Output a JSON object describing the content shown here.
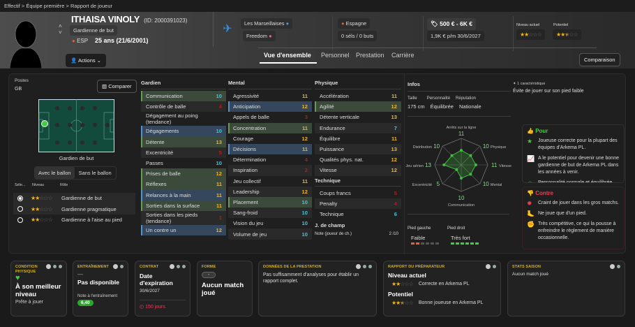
{
  "breadcrumb": [
    "Effectif",
    "Équipe première",
    "Rapport de joueur"
  ],
  "player": {
    "name": "ITHAISA VINOLY",
    "id": "(ID: 2000391023)",
    "position": "Gardienne de but",
    "nation_code": "ESP",
    "age": "25 ans (21/6/2001)",
    "actions": "Actions"
  },
  "club": {
    "name": "Les Marseillaises",
    "sponsor": "Freedom",
    "nationality": "Espagne",
    "caps": "0 séls / 0 buts",
    "value": "500 € - 6K €",
    "wage": "1,9K € p/m",
    "contract_end": "30/6/2027"
  },
  "ratings": {
    "current_label": "Niveau actuel",
    "current_stars": 2,
    "potential_label": "Potentiel",
    "potential_stars": 2.5
  },
  "tabs": [
    "Vue d'ensemble",
    "Personnel",
    "Prestation",
    "Carrière"
  ],
  "compare_top": "Comparaison",
  "positions": {
    "title": "Postes",
    "value": "GB",
    "compare": "Comparer",
    "pitch_label": "Gardien de but",
    "toggle": [
      "Avec le ballon",
      "Sans le ballon"
    ],
    "headers": [
      "Séle...",
      "Niveau",
      "Rôle"
    ],
    "roles": [
      {
        "name": "Gardienne de but",
        "stars": 2,
        "selected": true
      },
      {
        "name": "Gardienne pragmatique",
        "stars": 2,
        "selected": false
      },
      {
        "name": "Gardienne à l'aise au pied",
        "stars": 2,
        "selected": false
      }
    ]
  },
  "attributes": {
    "gardien": {
      "title": "Gardien",
      "items": [
        [
          "Communication",
          10,
          "g"
        ],
        [
          "Contrôle de balle",
          4,
          ""
        ],
        [
          "Dégagement au poing (tendance)",
          "",
          ""
        ],
        [
          "Dégagements",
          10,
          "b"
        ],
        [
          "Détente",
          13,
          "g"
        ],
        [
          "Excentricité",
          5,
          ""
        ],
        [
          "Passes",
          10,
          ""
        ],
        [
          "Prises de balle",
          12,
          "g"
        ],
        [
          "Réflexes",
          11,
          "g"
        ],
        [
          "Relances à la main",
          11,
          "b"
        ],
        [
          "Sorties dans la surface",
          11,
          "g"
        ],
        [
          "Sorties dans les pieds (tendance)",
          1,
          ""
        ],
        [
          "Un contre un",
          12,
          "b"
        ]
      ]
    },
    "mental": {
      "title": "Mental",
      "items": [
        [
          "Agressivité",
          11,
          ""
        ],
        [
          "Anticipation",
          12,
          "b"
        ],
        [
          "Appels de balle",
          3,
          ""
        ],
        [
          "Concentration",
          11,
          "g"
        ],
        [
          "Courage",
          12,
          ""
        ],
        [
          "Décisions",
          11,
          "b"
        ],
        [
          "Détermination",
          4,
          ""
        ],
        [
          "Inspiration",
          2,
          ""
        ],
        [
          "Jeu collectif",
          11,
          ""
        ],
        [
          "Leadership",
          12,
          ""
        ],
        [
          "Placement",
          10,
          "g"
        ],
        [
          "Sang-froid",
          10,
          ""
        ],
        [
          "Vision du jeu",
          10,
          ""
        ],
        [
          "Volume de jeu",
          10,
          ""
        ]
      ]
    },
    "physique": {
      "title": "Physique",
      "items": [
        [
          "Accélération",
          11,
          ""
        ],
        [
          "Agilité",
          12,
          "g"
        ],
        [
          "Détente verticale",
          13,
          ""
        ],
        [
          "Endurance",
          7,
          ""
        ],
        [
          "Équilibre",
          11,
          ""
        ],
        [
          "Puissance",
          13,
          ""
        ],
        [
          "Qualités phys. nat.",
          12,
          ""
        ],
        [
          "Vitesse",
          12,
          ""
        ]
      ]
    },
    "technique": {
      "title": "Technique",
      "items": [
        [
          "Coups francs",
          5,
          ""
        ],
        [
          "Penalty",
          4,
          ""
        ],
        [
          "Technique",
          6,
          ""
        ]
      ]
    },
    "outfield": {
      "title": "J. de champ",
      "label": "Note (joueur de ch.)",
      "value": "2 /10"
    }
  },
  "infos": {
    "title": "Infos",
    "height_label": "Taille",
    "height": "175 cm",
    "personality_label": "Personnalité",
    "personality": "Équilibrée",
    "reputation_label": "Réputation",
    "reputation": "Nationale",
    "left_foot_label": "Pied gauche",
    "left_foot": "Faible",
    "left_foot_level": 2,
    "right_foot_label": "Pied droit",
    "right_foot": "Très fort",
    "right_foot_level": 6
  },
  "radar": {
    "axes": [
      "Arrêts sur la ligne",
      "Physique",
      "Vitesse",
      "Mental",
      "Communication",
      "Excentricité",
      "Jeu aérien",
      "Distribution"
    ],
    "values": [
      11,
      10,
      11,
      10,
      10,
      5,
      13,
      10
    ],
    "max": 20,
    "color": "#3fbf3f"
  },
  "traits": {
    "count": "1 caractéristique",
    "text": "Évite de jouer sur son pied faible"
  },
  "pros": {
    "title": "Pour",
    "items": [
      "Joueuse correcte pour la plupart des équipes d'Arkema PL.",
      "A le potentiel pour devenir une bonne gardienne de but de Arkema PL dans les années à venir.",
      "Personnalité normale et équilibrée."
    ]
  },
  "cons": {
    "title": "Contre",
    "items": [
      "Craint de jouer dans les gros matchs.",
      "Ne joue que d'un pied.",
      "Très compétitive, ce qui la pousse à enfreindre le règlement de manière occasionnelle."
    ]
  },
  "cards": {
    "condition": {
      "title": "CONDITION PHYSIQUE",
      "main": "À son meilleur niveau",
      "sub": "Prête à jouer"
    },
    "training": {
      "title": "ENTRAÎNEMENT",
      "dash": "—",
      "main": "Pas disponible",
      "label": "Note à l'entraînement",
      "rating": "6,40"
    },
    "contract": {
      "title": "CONTRAT",
      "main": "Date d'expiration",
      "date": "30/6/2027",
      "remaining": "150 jours"
    },
    "form": {
      "title": "FORME",
      "badge": "-",
      "main": "Aucun match joué"
    },
    "performance": {
      "title": "DONNÉES DE LA PRESTATION",
      "text": "Pas suffisamment d'analyses pour établir un rapport complet."
    },
    "scout": {
      "title": "RAPPORT DU PRÉPARATEUR",
      "current": "Niveau actuel",
      "current_text": "Correcte en Arkema PL",
      "potential": "Potentiel",
      "potential_text": "Bonne joueuse en Arkema PL"
    },
    "stats": {
      "title": "STATS SAISON",
      "text": "Aucun match joué"
    }
  },
  "colors": {
    "accent_gold": "#d4b21c",
    "good": "#3ec8e0",
    "high": "#f0b429",
    "low": "#b41c1c",
    "pro": "#3fcf3f",
    "con": "#e8405a"
  }
}
